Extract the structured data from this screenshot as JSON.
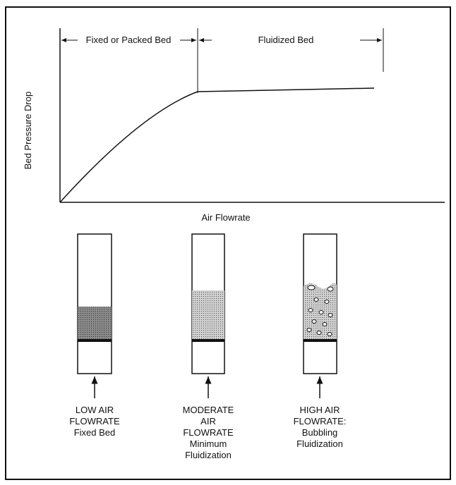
{
  "graph": {
    "regions": [
      "Fixed or Packed Bed",
      "Fluidized Bed"
    ],
    "y_label": "Bed Pressure Drop",
    "x_label": "Air Flowrate"
  },
  "columns": [
    {
      "lines": [
        "LOW AIR",
        "FLOWRATE",
        "Fixed Bed"
      ]
    },
    {
      "lines": [
        "MODERATE",
        "AIR",
        "FLOWRATE",
        "Minimum",
        "Fluidization"
      ]
    },
    {
      "lines": [
        "HIGH AIR",
        "FLOWRATE:",
        "Bubbling",
        "Fluidization"
      ]
    }
  ]
}
